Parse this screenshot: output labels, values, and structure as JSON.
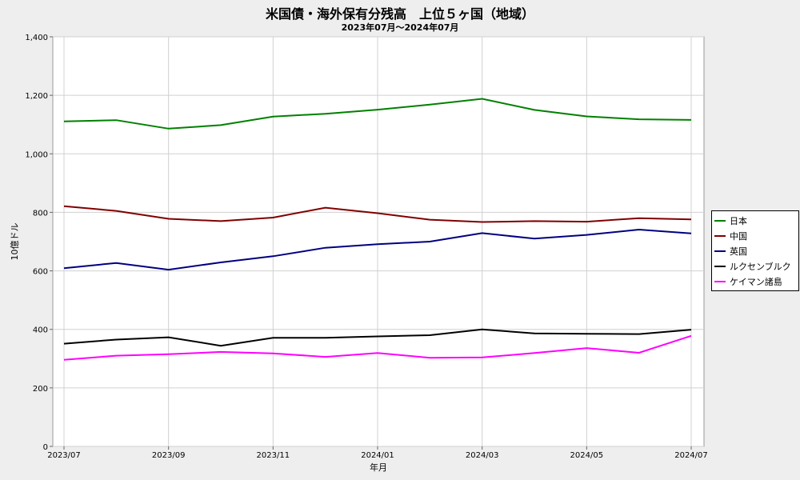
{
  "chart_data": {
    "type": "line",
    "title": "米国債・海外保有分残高　上位５ヶ国（地域）",
    "subtitle": "2023年07月～2024年07月",
    "xlabel": "年月",
    "ylabel": "10億ドル",
    "x": [
      "2023/07",
      "2023/08",
      "2023/09",
      "2023/10",
      "2023/11",
      "2023/12",
      "2024/01",
      "2024/02",
      "2024/03",
      "2024/04",
      "2024/05",
      "2024/06",
      "2024/07"
    ],
    "x_tick_labels": [
      "2023/07",
      "2023/09",
      "2023/11",
      "2024/01",
      "2024/03",
      "2024/05",
      "2024/07"
    ],
    "ylim": [
      0,
      1400
    ],
    "y_ticks": [
      0,
      200,
      400,
      600,
      800,
      1000,
      1200,
      1400
    ],
    "y_tick_labels": [
      "0",
      "200",
      "400",
      "600",
      "800",
      "1,000",
      "1,200",
      "1,400"
    ],
    "grid": true,
    "legend_position": "right",
    "series": [
      {
        "name": "日本",
        "color": "#008000",
        "values": [
          1111,
          1115,
          1086,
          1098,
          1127,
          1137,
          1151,
          1168,
          1188,
          1150,
          1128,
          1118,
          1116
        ]
      },
      {
        "name": "中国",
        "color": "#800000",
        "values": [
          821,
          805,
          778,
          770,
          782,
          816,
          797,
          775,
          767,
          770,
          768,
          780,
          776
        ]
      },
      {
        "name": "英国",
        "color": "#000080",
        "values": [
          609,
          627,
          604,
          629,
          650,
          679,
          691,
          700,
          729,
          710,
          723,
          741,
          728
        ]
      },
      {
        "name": "ルクセンブルク",
        "color": "#000000",
        "values": [
          351,
          365,
          373,
          344,
          371,
          371,
          376,
          380,
          400,
          386,
          385,
          384,
          399
        ]
      },
      {
        "name": "ケイマン諸島",
        "color": "#ff00ff",
        "values": [
          296,
          310,
          315,
          323,
          318,
          306,
          319,
          303,
          304,
          319,
          336,
          320,
          378
        ]
      }
    ]
  }
}
